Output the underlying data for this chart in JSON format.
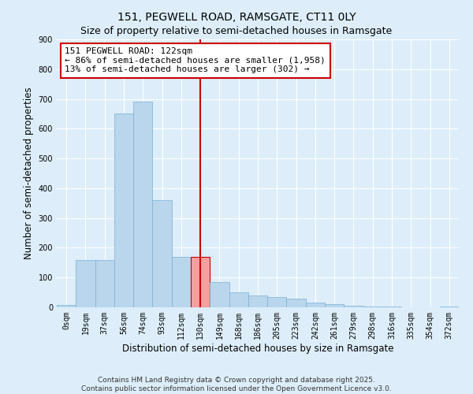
{
  "title": "151, PEGWELL ROAD, RAMSGATE, CT11 0LY",
  "subtitle": "Size of property relative to semi-detached houses in Ramsgate",
  "xlabel": "Distribution of semi-detached houses by size in Ramsgate",
  "ylabel": "Number of semi-detached properties",
  "bar_labels": [
    "0sqm",
    "19sqm",
    "37sqm",
    "56sqm",
    "74sqm",
    "93sqm",
    "112sqm",
    "130sqm",
    "149sqm",
    "168sqm",
    "186sqm",
    "205sqm",
    "223sqm",
    "242sqm",
    "261sqm",
    "279sqm",
    "298sqm",
    "316sqm",
    "335sqm",
    "354sqm",
    "372sqm"
  ],
  "bar_values": [
    8,
    160,
    160,
    650,
    690,
    360,
    170,
    170,
    85,
    50,
    40,
    35,
    30,
    15,
    10,
    5,
    3,
    2,
    1,
    1,
    2
  ],
  "bar_color": "#bad6ec",
  "bar_edge_color": "#7aafd4",
  "highlight_index": 7,
  "highlight_bar_color": "#f4a0a0",
  "highlight_bar_edge_color": "#cc0000",
  "vline_x": 7,
  "vline_color": "#cc0000",
  "annotation_title": "151 PEGWELL ROAD: 122sqm",
  "annotation_line1": "← 86% of semi-detached houses are smaller (1,958)",
  "annotation_line2": "13% of semi-detached houses are larger (302) →",
  "annotation_box_color": "#ffffff",
  "annotation_box_edge": "#cc0000",
  "ylim": [
    0,
    900
  ],
  "yticks": [
    0,
    100,
    200,
    300,
    400,
    500,
    600,
    700,
    800,
    900
  ],
  "bg_color": "#ddeefa",
  "plot_bg_color": "#ddeefa",
  "grid_color": "#ffffff",
  "footer_line1": "Contains HM Land Registry data © Crown copyright and database right 2025.",
  "footer_line2": "Contains public sector information licensed under the Open Government Licence v3.0.",
  "title_fontsize": 10,
  "subtitle_fontsize": 9,
  "axis_label_fontsize": 8.5,
  "tick_fontsize": 7,
  "annotation_fontsize": 8,
  "footer_fontsize": 6.5
}
